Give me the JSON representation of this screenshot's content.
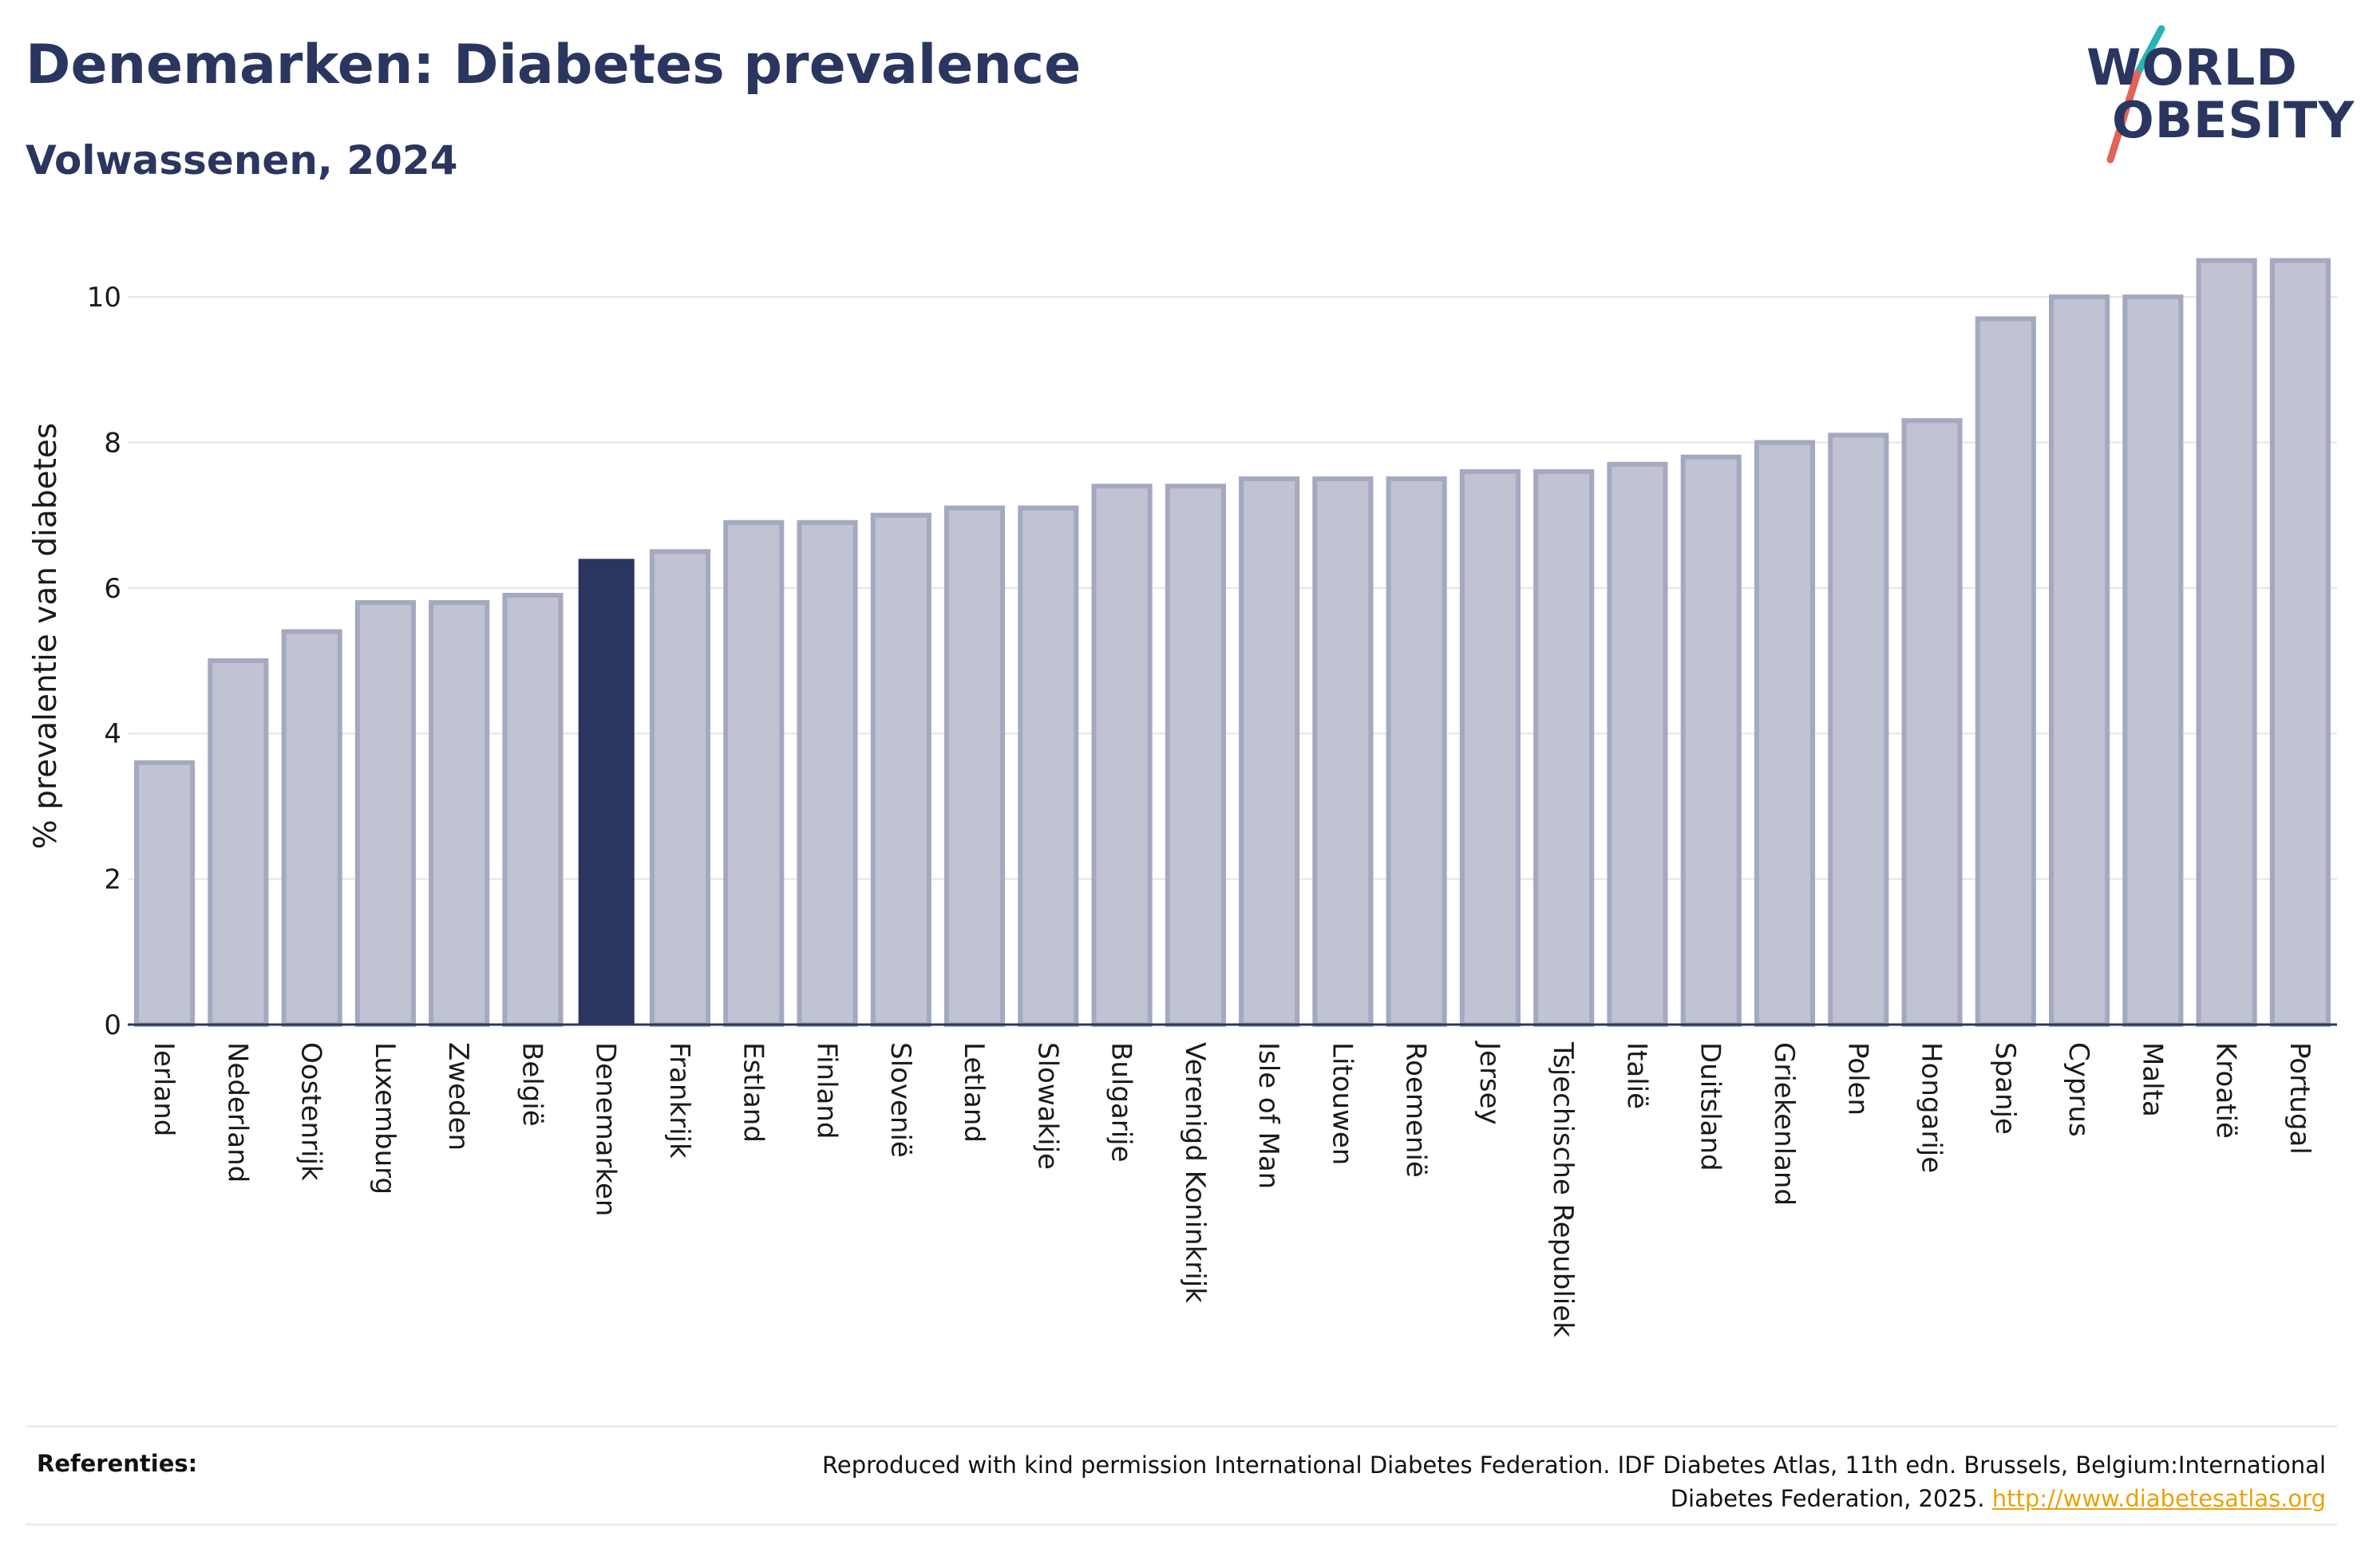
{
  "header": {
    "title": "Denemarken: Diabetes prevalence",
    "subtitle": "Volwassenen, 2024"
  },
  "logo": {
    "line1": "WORLD",
    "line2": "OBESITY"
  },
  "colors": {
    "text": "#2b3660",
    "highlight_bar": "#2b3660",
    "bar_fill": "#c0c3d2",
    "bar_outline": "#a4a9bf",
    "logo_slash_teal": "#2ab3b1",
    "logo_slash_red": "#e2635a",
    "link": "#e9a20c"
  },
  "chart_data": {
    "type": "bar",
    "ylabel": "% prevalentie van diabetes",
    "ylim": [
      0,
      10.9
    ],
    "yticks": [
      0,
      2,
      4,
      6,
      8,
      10
    ],
    "grid": true,
    "highlight": "Denemarken",
    "categories": [
      "Ierland",
      "Nederland",
      "Oostenrijk",
      "Luxemburg",
      "Zweden",
      "België",
      "Denemarken",
      "Frankrijk",
      "Estland",
      "Finland",
      "Slovenië",
      "Letland",
      "Slowakije",
      "Bulgarije",
      "Verenigd Koninkrijk",
      "Isle of Man",
      "Litouwen",
      "Roemenië",
      "Jersey",
      "Tsjechische Republiek",
      "Italië",
      "Duitsland",
      "Griekenland",
      "Polen",
      "Hongarije",
      "Spanje",
      "Cyprus",
      "Malta",
      "Kroatië",
      "Portugal"
    ],
    "values": [
      3.6,
      5.0,
      5.4,
      5.8,
      5.8,
      5.9,
      6.4,
      6.5,
      6.9,
      6.9,
      7.0,
      7.1,
      7.1,
      7.4,
      7.4,
      7.5,
      7.5,
      7.5,
      7.6,
      7.6,
      7.7,
      7.8,
      8.0,
      8.1,
      8.3,
      9.7,
      10.0,
      10.0,
      10.5,
      10.5
    ]
  },
  "references": {
    "label": "Referenties:",
    "text": "Reproduced with kind permission International Diabetes Federation. IDF Diabetes Atlas, 11th edn. Brussels, Belgium:International Diabetes Federation, 2025.",
    "link": "http://www.diabetesatlas.org"
  }
}
